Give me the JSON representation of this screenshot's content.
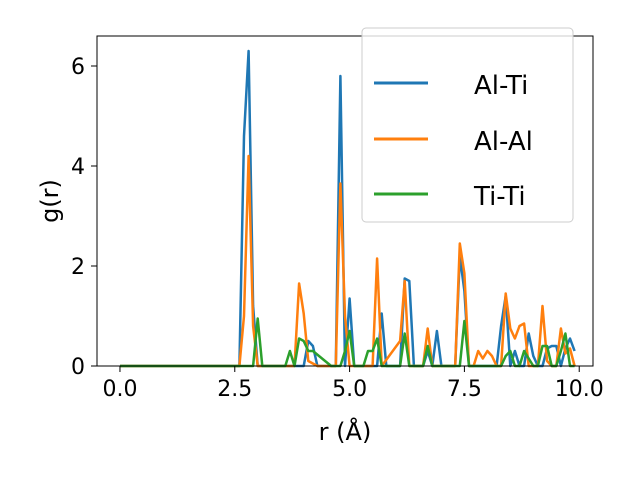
{
  "chart_data": {
    "type": "line",
    "xlabel": "r (Å)",
    "ylabel": "g(r)",
    "xlim": [
      -0.5,
      10.3
    ],
    "ylim": [
      0,
      6.6
    ],
    "xticks": [
      0.0,
      2.5,
      5.0,
      7.5,
      10.0
    ],
    "xtick_labels": [
      "0.0",
      "2.5",
      "5.0",
      "7.5",
      "10.0"
    ],
    "yticks": [
      0,
      2,
      4,
      6
    ],
    "ytick_labels": [
      "0",
      "2",
      "4",
      "6"
    ],
    "grid": false,
    "legend_position": "top-right",
    "series": [
      {
        "name": "Al-Ti",
        "color": "#1f77b4",
        "x": [
          0.0,
          2.6,
          2.7,
          2.8,
          2.9,
          3.0,
          3.1,
          3.2,
          4.0,
          4.1,
          4.2,
          4.3,
          4.7,
          4.8,
          4.9,
          5.0,
          5.1,
          5.5,
          5.6,
          5.7,
          5.8,
          6.0,
          6.1,
          6.2,
          6.3,
          6.4,
          6.5,
          6.6,
          6.7,
          6.8,
          6.9,
          7.0,
          7.1,
          7.2,
          7.3,
          7.4,
          7.5,
          7.6,
          7.7,
          7.8,
          7.9,
          8.0,
          8.1,
          8.2,
          8.3,
          8.4,
          8.5,
          8.6,
          8.7,
          8.8,
          8.9,
          9.0,
          9.1,
          9.2,
          9.3,
          9.4,
          9.5,
          9.6,
          9.7,
          9.8,
          9.9
        ],
        "y": [
          0.0,
          0.0,
          4.6,
          6.3,
          1.2,
          0.0,
          0.0,
          0.0,
          0.0,
          0.5,
          0.4,
          0.0,
          0.0,
          5.8,
          0.0,
          1.35,
          0.0,
          0.0,
          0.0,
          1.05,
          0.0,
          0.0,
          0.0,
          1.75,
          1.7,
          0.0,
          0.0,
          0.0,
          0.3,
          0.0,
          0.7,
          0.0,
          0.0,
          0.0,
          0.0,
          2.2,
          1.5,
          0.0,
          0.0,
          0.0,
          0.0,
          0.0,
          0.0,
          0.0,
          0.8,
          1.4,
          0.0,
          0.3,
          0.0,
          0.0,
          0.65,
          0.2,
          0.0,
          0.0,
          0.35,
          0.4,
          0.4,
          0.0,
          0.35,
          0.55,
          0.3
        ]
      },
      {
        "name": "Al-Al",
        "color": "#ff7f0e",
        "x": [
          0.0,
          2.6,
          2.7,
          2.8,
          2.9,
          3.0,
          3.7,
          3.8,
          3.9,
          4.0,
          4.1,
          4.3,
          4.4,
          4.7,
          4.8,
          4.9,
          5.0,
          5.1,
          5.5,
          5.6,
          5.7,
          6.1,
          6.2,
          6.3,
          6.4,
          6.5,
          6.6,
          6.7,
          6.8,
          6.9,
          7.0,
          7.1,
          7.2,
          7.3,
          7.4,
          7.5,
          7.6,
          7.7,
          7.8,
          7.9,
          8.0,
          8.1,
          8.2,
          8.3,
          8.4,
          8.5,
          8.6,
          8.7,
          8.8,
          8.9,
          9.0,
          9.1,
          9.2,
          9.3,
          9.4,
          9.5,
          9.6,
          9.7,
          9.8,
          9.9
        ],
        "y": [
          0.0,
          0.0,
          1.0,
          4.2,
          0.8,
          0.0,
          0.0,
          0.0,
          1.65,
          1.05,
          0.1,
          0.0,
          0.0,
          0.0,
          3.65,
          1.0,
          0.0,
          0.0,
          0.0,
          2.15,
          0.0,
          0.5,
          1.7,
          0.0,
          0.0,
          0.0,
          0.0,
          0.75,
          0.0,
          0.0,
          0.0,
          0.0,
          0.0,
          0.0,
          2.45,
          1.85,
          0.0,
          0.0,
          0.3,
          0.15,
          0.3,
          0.2,
          0.0,
          0.0,
          1.45,
          0.75,
          0.55,
          0.8,
          0.85,
          0.0,
          0.0,
          0.0,
          1.2,
          0.1,
          0.0,
          0.0,
          0.75,
          0.25,
          0.35,
          0.0
        ]
      },
      {
        "name": "Ti-Ti",
        "color": "#2ca02c",
        "x": [
          0.0,
          2.9,
          3.0,
          3.1,
          3.6,
          3.7,
          3.8,
          3.9,
          4.0,
          4.1,
          4.2,
          4.6,
          4.8,
          4.9,
          5.0,
          5.1,
          5.2,
          5.3,
          5.4,
          5.5,
          5.6,
          5.7,
          6.0,
          6.1,
          6.2,
          6.3,
          6.4,
          6.5,
          6.6,
          6.7,
          6.8,
          6.9,
          7.0,
          7.1,
          7.2,
          7.3,
          7.4,
          7.5,
          7.6,
          7.7,
          7.8,
          7.9,
          8.0,
          8.1,
          8.2,
          8.3,
          8.4,
          8.5,
          8.6,
          8.7,
          8.8,
          8.9,
          9.0,
          9.1,
          9.2,
          9.3,
          9.4,
          9.5,
          9.6,
          9.7,
          9.8,
          9.9
        ],
        "y": [
          0.0,
          0.0,
          0.95,
          0.0,
          0.0,
          0.3,
          0.0,
          0.55,
          0.5,
          0.3,
          0.3,
          0.0,
          0.0,
          0.3,
          0.7,
          0.0,
          0.0,
          0.0,
          0.3,
          0.3,
          0.55,
          0.0,
          0.0,
          0.0,
          0.65,
          0.0,
          0.0,
          0.0,
          0.0,
          0.4,
          0.0,
          0.0,
          0.0,
          0.0,
          0.0,
          0.0,
          0.0,
          0.9,
          0.0,
          0.0,
          0.0,
          0.0,
          0.0,
          0.0,
          0.0,
          0.0,
          0.2,
          0.3,
          0.0,
          0.0,
          0.3,
          0.15,
          0.0,
          0.0,
          0.4,
          0.4,
          0.0,
          0.0,
          0.3,
          0.65,
          0.0,
          0.0
        ]
      }
    ]
  }
}
